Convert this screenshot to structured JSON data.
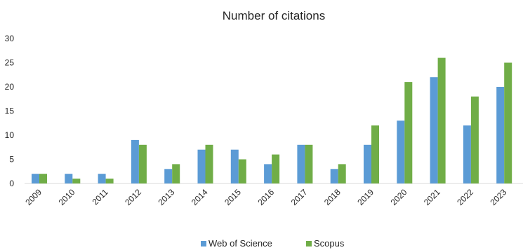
{
  "colors": {
    "web_of_science": "#5B9BD5",
    "scopus": "#70AD47",
    "axis": "#d9d9d9",
    "text": "#262626"
  },
  "chart_data": {
    "type": "bar",
    "title": "Number of citations",
    "xlabel": "",
    "ylabel": "",
    "categories": [
      "2009",
      "2010",
      "2011",
      "2012",
      "2013",
      "2014",
      "2015",
      "2016",
      "2017",
      "2018",
      "2019",
      "2020",
      "2021",
      "2022",
      "2023"
    ],
    "series": [
      {
        "name": "Web of Science",
        "values": [
          2,
          2,
          2,
          9,
          3,
          7,
          7,
          4,
          8,
          3,
          8,
          13,
          22,
          12,
          20
        ]
      },
      {
        "name": "Scopus",
        "values": [
          2,
          1,
          1,
          8,
          4,
          8,
          5,
          6,
          8,
          4,
          12,
          21,
          26,
          18,
          25
        ]
      }
    ],
    "ylim": [
      0,
      30
    ],
    "yticks": [
      "0",
      "5",
      "10",
      "15",
      "20",
      "25",
      "30"
    ],
    "grid": false,
    "legend": "bottom"
  }
}
